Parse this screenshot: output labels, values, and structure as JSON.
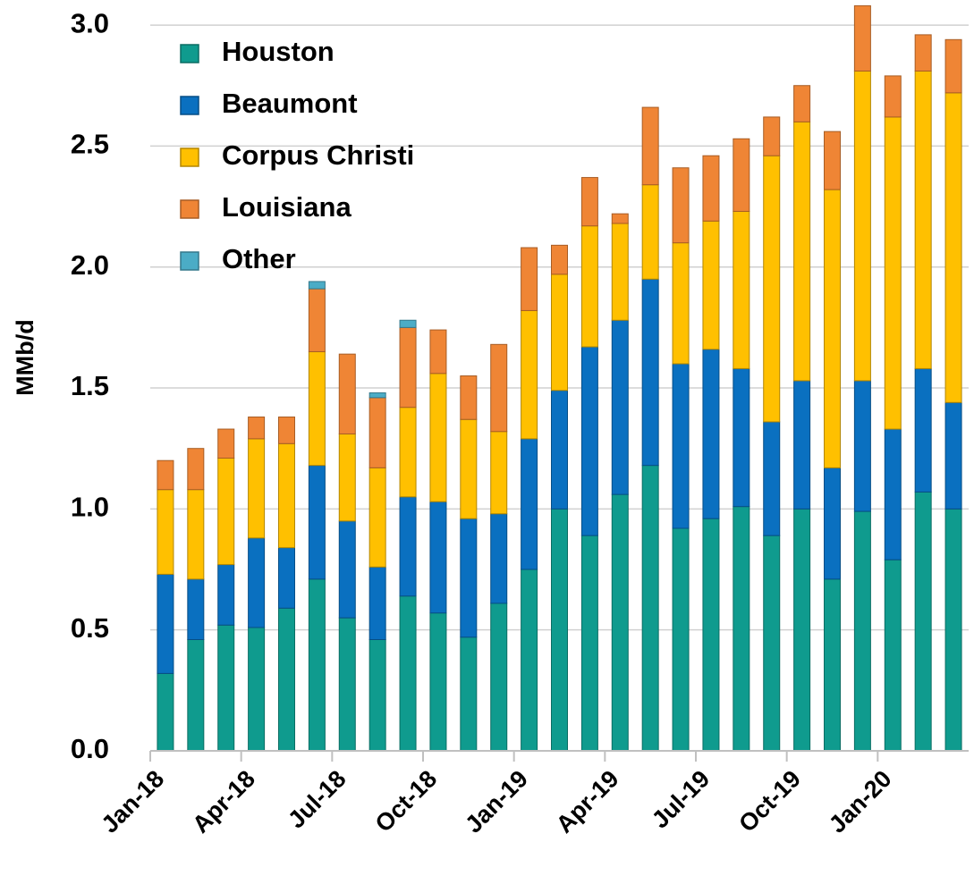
{
  "chart_data": {
    "type": "stacked_bar",
    "y_label": "MMb/d",
    "categories": [
      "Jan-18",
      null,
      null,
      "Apr-18",
      null,
      null,
      "Jul-18",
      null,
      null,
      "Oct-18",
      null,
      null,
      "Jan-19",
      null,
      null,
      "Apr-19",
      null,
      null,
      "Jul-19",
      null,
      null,
      "Oct-19",
      null,
      null,
      "Jan-20",
      null,
      null
    ],
    "series": [
      {
        "name": "Houston",
        "color": "#0f9b8e",
        "values": [
          0.32,
          0.46,
          0.52,
          0.51,
          0.59,
          0.71,
          0.55,
          0.46,
          0.64,
          0.57,
          0.47,
          0.61,
          0.75,
          1.0,
          0.89,
          1.06,
          1.18,
          0.92,
          0.96,
          1.01,
          0.89,
          1.0,
          0.71,
          0.99,
          0.79,
          1.07,
          1.0
        ]
      },
      {
        "name": "Beaumont",
        "color": "#0a70c0",
        "values": [
          0.41,
          0.25,
          0.25,
          0.37,
          0.25,
          0.47,
          0.4,
          0.3,
          0.41,
          0.46,
          0.49,
          0.37,
          0.54,
          0.49,
          0.78,
          0.72,
          0.77,
          0.68,
          0.7,
          0.57,
          0.47,
          0.53,
          0.46,
          0.54,
          0.54,
          0.51,
          0.44
        ]
      },
      {
        "name": "Corpus Christi",
        "color": "#ffc000",
        "values": [
          0.35,
          0.37,
          0.44,
          0.41,
          0.43,
          0.47,
          0.36,
          0.41,
          0.37,
          0.53,
          0.41,
          0.34,
          0.53,
          0.48,
          0.5,
          0.4,
          0.39,
          0.5,
          0.53,
          0.65,
          1.1,
          1.07,
          1.15,
          1.28,
          1.29,
          1.23,
          1.28
        ]
      },
      {
        "name": "Louisiana",
        "color": "#ef8535",
        "values": [
          0.12,
          0.17,
          0.12,
          0.09,
          0.11,
          0.26,
          0.33,
          0.29,
          0.33,
          0.18,
          0.18,
          0.36,
          0.26,
          0.12,
          0.2,
          0.04,
          0.32,
          0.31,
          0.27,
          0.3,
          0.16,
          0.15,
          0.24,
          0.27,
          0.17,
          0.15,
          0.22
        ]
      },
      {
        "name": "Other",
        "color": "#4bacc6",
        "values": [
          0,
          0,
          0,
          0,
          0,
          0.03,
          0,
          0.02,
          0.03,
          0,
          0,
          0,
          0,
          0,
          0,
          0,
          0,
          0,
          0,
          0,
          0,
          0,
          0,
          0,
          0,
          0,
          0
        ]
      }
    ],
    "ylim": [
      0,
      3.1
    ],
    "yticks": [
      {
        "value": 0,
        "label": "0.0"
      },
      {
        "value": 0.5,
        "label": "0.5"
      },
      {
        "value": 1,
        "label": "1.0"
      },
      {
        "value": 1.5,
        "label": "1.5"
      },
      {
        "value": 2,
        "label": "2.0"
      },
      {
        "value": 2.5,
        "label": "2.5"
      },
      {
        "value": 3,
        "label": "3.0"
      }
    ],
    "grid": true,
    "legend": "top-left"
  }
}
